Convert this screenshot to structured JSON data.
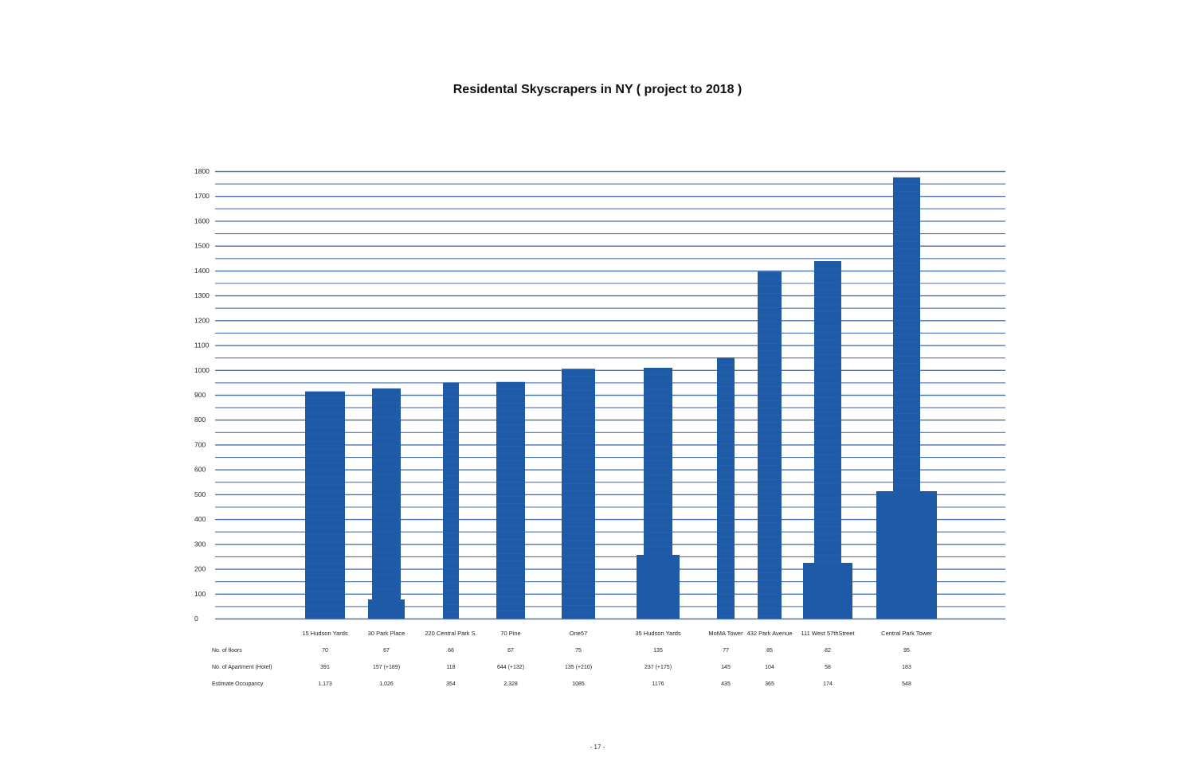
{
  "page": {
    "number": "- 17 -"
  },
  "chart_data": {
    "type": "bar",
    "title": "Residental Skyscrapers in NY ( project to 2018 )",
    "xlabel": "",
    "ylabel": "",
    "ylim": [
      0,
      1800
    ],
    "yticks": [
      0,
      100,
      200,
      300,
      400,
      500,
      600,
      700,
      800,
      900,
      1000,
      1100,
      1200,
      1300,
      1400,
      1500,
      1600,
      1700,
      1800
    ],
    "grid": true,
    "categories": [
      "15 Hudson Yards",
      "30 Park Place",
      "220 Central Park S.",
      "70 Pine",
      "One57",
      "35 Hudson Yards",
      "MoMA Tower",
      "432 Park Avenue",
      "111 West 57thStreet",
      "Central Park Tower"
    ],
    "values": [
      914,
      926,
      950,
      952,
      1005,
      1009,
      1050,
      1396,
      1438,
      1775
    ],
    "bar_color": "#1f5aa6",
    "grid_color": "#4a72b0",
    "table": {
      "rows": [
        {
          "label": "No. of floors",
          "values": [
            "70",
            "67",
            "66",
            "67",
            "75",
            "135",
            "77",
            "85",
            "82",
            "95"
          ]
        },
        {
          "label": "No. of Apartment (Hotel)",
          "values": [
            "391",
            "157 (+189)",
            "118",
            "644 (+132)",
            "135 (+210)",
            "237 (+175)",
            "145",
            "104",
            "58",
            "183"
          ]
        },
        {
          "label": "Estimate Occupancy",
          "values": [
            "1,173",
            "1,026",
            "354",
            "2,328",
            "1085",
            "1176",
            "435",
            "365",
            "174",
            "548"
          ]
        }
      ]
    }
  }
}
